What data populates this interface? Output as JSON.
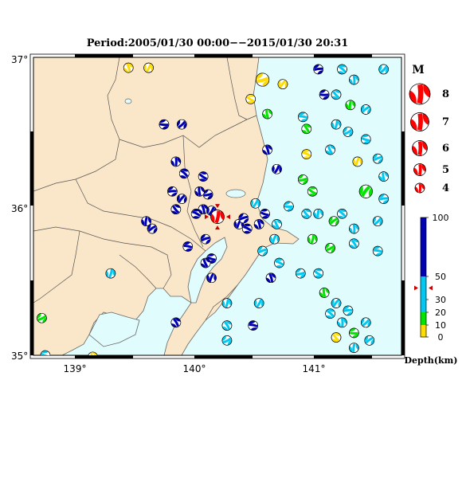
{
  "title": "Period:2005/01/30 00:00−−2015/01/30 20:31",
  "axes": {
    "lat_labels": [
      "37°",
      "36°",
      "35°"
    ],
    "lon_labels": [
      "139°",
      "140°",
      "141°"
    ]
  },
  "legend": {
    "magnitude_title": "M",
    "magnitudes": [
      "8",
      "7",
      "6",
      "5",
      "4"
    ],
    "depth_ticks": [
      "100",
      "50",
      "30",
      "20",
      "10",
      "0"
    ],
    "depth_label": "Depth(km)"
  },
  "colors": {
    "land": "#fae6c8",
    "sea": "#e0fcfc",
    "deep": "#0000b4",
    "mid": "#00c8f0",
    "shallow": "#00e600",
    "veryshallow": "#ffdc00",
    "main_event": "#ff0000"
  },
  "chart_data": {
    "type": "scatter",
    "xlim": [
      138.65,
      141.75
    ],
    "ylim": [
      35.0,
      37.0
    ],
    "main_event": {
      "lon": 140.2,
      "lat": 35.93,
      "mag": 5,
      "depth": 40
    },
    "events": [
      [
        139.45,
        36.93,
        4,
        10
      ],
      [
        139.62,
        36.93,
        4,
        10
      ],
      [
        140.58,
        36.85,
        5,
        10
      ],
      [
        140.48,
        36.72,
        4,
        10
      ],
      [
        140.62,
        36.62,
        4,
        15
      ],
      [
        140.75,
        36.82,
        4,
        5
      ],
      [
        141.05,
        36.92,
        4,
        60
      ],
      [
        141.25,
        36.92,
        4,
        30
      ],
      [
        141.35,
        36.85,
        4,
        30
      ],
      [
        141.6,
        36.92,
        4,
        40
      ],
      [
        141.1,
        36.75,
        4,
        60
      ],
      [
        141.2,
        36.75,
        4,
        30
      ],
      [
        141.32,
        36.68,
        4,
        20
      ],
      [
        141.45,
        36.65,
        4,
        40
      ],
      [
        140.92,
        36.6,
        4,
        40
      ],
      [
        140.95,
        36.52,
        4,
        20
      ],
      [
        141.2,
        36.55,
        4,
        40
      ],
      [
        141.3,
        36.5,
        4,
        30
      ],
      [
        141.45,
        36.45,
        4,
        30
      ],
      [
        141.15,
        36.38,
        4,
        30
      ],
      [
        141.38,
        36.3,
        4,
        5
      ],
      [
        141.55,
        36.32,
        4,
        40
      ],
      [
        140.95,
        36.35,
        4,
        10
      ],
      [
        140.62,
        36.38,
        4,
        60
      ],
      [
        140.7,
        36.25,
        4,
        60
      ],
      [
        140.92,
        36.18,
        4,
        20
      ],
      [
        141.0,
        36.1,
        4,
        15
      ],
      [
        141.6,
        36.2,
        4,
        30
      ],
      [
        141.45,
        36.1,
        5,
        20
      ],
      [
        141.6,
        36.05,
        4,
        40
      ],
      [
        141.25,
        35.95,
        4,
        30
      ],
      [
        141.35,
        35.85,
        4,
        30
      ],
      [
        141.55,
        35.9,
        4,
        40
      ],
      [
        140.8,
        36.0,
        4,
        40
      ],
      [
        140.95,
        35.95,
        4,
        40
      ],
      [
        141.05,
        35.95,
        4,
        40
      ],
      [
        141.18,
        35.9,
        4,
        20
      ],
      [
        141.55,
        35.7,
        4,
        40
      ],
      [
        141.35,
        35.75,
        4,
        30
      ],
      [
        141.0,
        35.78,
        4,
        20
      ],
      [
        141.15,
        35.72,
        4,
        20
      ],
      [
        140.6,
        35.95,
        4,
        60
      ],
      [
        140.7,
        35.88,
        4,
        40
      ],
      [
        140.68,
        35.78,
        4,
        40
      ],
      [
        140.58,
        35.7,
        4,
        40
      ],
      [
        140.72,
        35.62,
        4,
        40
      ],
      [
        140.65,
        35.52,
        4,
        60
      ],
      [
        140.55,
        35.35,
        4,
        40
      ],
      [
        140.9,
        35.55,
        4,
        40
      ],
      [
        141.05,
        35.55,
        4,
        40
      ],
      [
        141.1,
        35.42,
        4,
        20
      ],
      [
        141.2,
        35.35,
        4,
        40
      ],
      [
        141.3,
        35.3,
        4,
        40
      ],
      [
        141.15,
        35.28,
        4,
        30
      ],
      [
        141.25,
        35.22,
        4,
        40
      ],
      [
        141.45,
        35.22,
        4,
        30
      ],
      [
        141.35,
        35.15,
        4,
        20
      ],
      [
        141.2,
        35.12,
        4,
        10
      ],
      [
        141.35,
        35.05,
        4,
        40
      ],
      [
        141.48,
        35.1,
        4,
        40
      ],
      [
        140.5,
        35.2,
        4,
        60
      ],
      [
        140.28,
        35.2,
        4,
        40
      ],
      [
        140.28,
        35.35,
        4,
        40
      ],
      [
        140.28,
        35.1,
        4,
        40
      ],
      [
        140.15,
        35.65,
        4,
        70
      ],
      [
        140.1,
        35.62,
        4,
        70
      ],
      [
        140.15,
        35.52,
        4,
        70
      ],
      [
        140.1,
        35.78,
        4,
        70
      ],
      [
        140.02,
        35.95,
        4,
        70
      ],
      [
        140.08,
        35.98,
        4,
        70
      ],
      [
        140.15,
        35.97,
        4,
        70
      ],
      [
        140.12,
        36.08,
        4,
        70
      ],
      [
        140.08,
        36.2,
        4,
        70
      ],
      [
        140.05,
        36.1,
        4,
        70
      ],
      [
        139.9,
        36.05,
        4,
        70
      ],
      [
        139.82,
        36.1,
        4,
        70
      ],
      [
        139.92,
        36.22,
        4,
        70
      ],
      [
        139.85,
        36.3,
        4,
        70
      ],
      [
        139.9,
        36.55,
        4,
        70
      ],
      [
        139.75,
        36.55,
        4,
        70
      ],
      [
        139.85,
        35.98,
        4,
        70
      ],
      [
        139.6,
        35.9,
        4,
        70
      ],
      [
        139.65,
        35.85,
        4,
        70
      ],
      [
        139.95,
        35.73,
        4,
        70
      ],
      [
        139.85,
        35.22,
        4,
        70
      ],
      [
        139.3,
        35.55,
        4,
        40
      ],
      [
        138.72,
        35.25,
        4,
        20
      ],
      [
        138.75,
        35.0,
        4,
        40
      ],
      [
        139.15,
        34.99,
        4,
        10
      ],
      [
        140.38,
        35.88,
        4,
        70
      ],
      [
        140.42,
        35.92,
        4,
        70
      ],
      [
        140.45,
        35.85,
        4,
        60
      ],
      [
        140.55,
        35.88,
        4,
        60
      ],
      [
        140.52,
        36.02,
        4,
        40
      ]
    ]
  }
}
